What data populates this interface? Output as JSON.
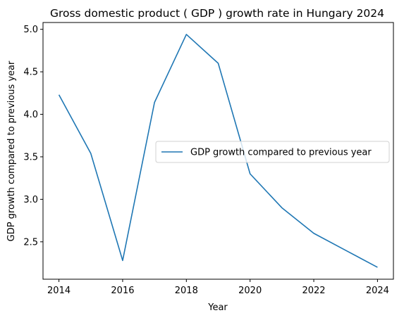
{
  "chart_data": {
    "type": "line",
    "title": "Gross domestic product ( GDP ) growth rate in Hungary 2024",
    "xlabel": "Year",
    "ylabel": "GDP growth compared to previous year",
    "x": [
      2014,
      2015,
      2016,
      2017,
      2018,
      2019,
      2020,
      2021,
      2022,
      2023,
      2024
    ],
    "series": [
      {
        "name": "GDP growth compared to previous year",
        "values": [
          4.23,
          3.54,
          2.28,
          4.14,
          4.94,
          4.6,
          3.3,
          2.9,
          2.6,
          2.4,
          2.2
        ],
        "color": "#1f77b4"
      }
    ],
    "xticks": [
      "2014",
      "2016",
      "2018",
      "2020",
      "2022",
      "2024"
    ],
    "yticks": [
      "2.5",
      "3.0",
      "3.5",
      "4.0",
      "4.5",
      "5.0"
    ],
    "xlim": [
      2013.5,
      2024.5
    ],
    "ylim": [
      2.06,
      5.08
    ],
    "grid": false,
    "legend_position": "center-right"
  }
}
